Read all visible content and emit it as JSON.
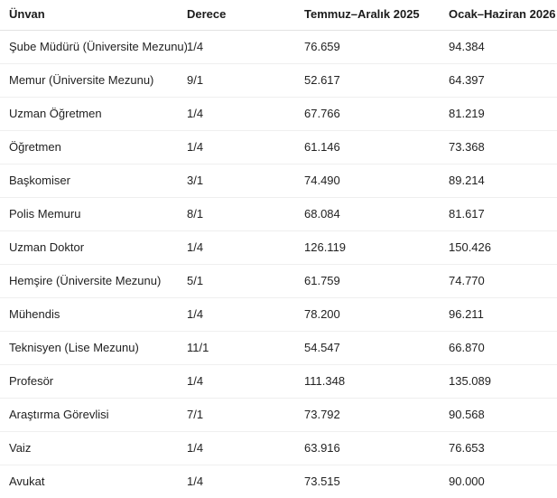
{
  "colors": {
    "background": "#ffffff",
    "text": "#212529",
    "header_border": "#e2e2e2",
    "row_border": "#efefef"
  },
  "table": {
    "columns": [
      "Ünvan",
      "Derece",
      "Temmuz–Aralık 2025",
      "Ocak–Haziran 2026"
    ],
    "rows": [
      [
        "Şube Müdürü (Üniversite Mezunu)",
        "1/4",
        "76.659",
        "94.384"
      ],
      [
        "Memur (Üniversite Mezunu)",
        "9/1",
        "52.617",
        "64.397"
      ],
      [
        "Uzman Öğretmen",
        "1/4",
        "67.766",
        "81.219"
      ],
      [
        "Öğretmen",
        "1/4",
        "61.146",
        "73.368"
      ],
      [
        "Başkomiser",
        "3/1",
        "74.490",
        "89.214"
      ],
      [
        "Polis Memuru",
        "8/1",
        "68.084",
        "81.617"
      ],
      [
        "Uzman Doktor",
        "1/4",
        "126.119",
        "150.426"
      ],
      [
        "Hemşire (Üniversite Mezunu)",
        "5/1",
        "61.759",
        "74.770"
      ],
      [
        "Mühendis",
        "1/4",
        "78.200",
        "96.211"
      ],
      [
        "Teknisyen (Lise Mezunu)",
        "11/1",
        "54.547",
        "66.870"
      ],
      [
        "Profesör",
        "1/4",
        "111.348",
        "135.089"
      ],
      [
        "Araştırma Görevlisi",
        "7/1",
        "73.792",
        "90.568"
      ],
      [
        "Vaiz",
        "1/4",
        "63.916",
        "76.653"
      ],
      [
        "Avukat",
        "1/4",
        "73.515",
        "90.000"
      ]
    ]
  },
  "chart_data": {
    "type": "table",
    "title": "",
    "columns": [
      "Ünvan",
      "Derece",
      "Temmuz–Aralık 2025",
      "Ocak–Haziran 2026"
    ],
    "rows": [
      [
        "Şube Müdürü (Üniversite Mezunu)",
        "1/4",
        "76.659",
        "94.384"
      ],
      [
        "Memur (Üniversite Mezunu)",
        "9/1",
        "52.617",
        "64.397"
      ],
      [
        "Uzman Öğretmen",
        "1/4",
        "67.766",
        "81.219"
      ],
      [
        "Öğretmen",
        "1/4",
        "61.146",
        "73.368"
      ],
      [
        "Başkomiser",
        "3/1",
        "74.490",
        "89.214"
      ],
      [
        "Polis Memuru",
        "8/1",
        "68.084",
        "81.617"
      ],
      [
        "Uzman Doktor",
        "1/4",
        "126.119",
        "150.426"
      ],
      [
        "Hemşire (Üniversite Mezunu)",
        "5/1",
        "61.759",
        "74.770"
      ],
      [
        "Mühendis",
        "1/4",
        "78.200",
        "96.211"
      ],
      [
        "Teknisyen (Lise Mezunu)",
        "11/1",
        "54.547",
        "66.870"
      ],
      [
        "Profesör",
        "1/4",
        "111.348",
        "135.089"
      ],
      [
        "Araştırma Görevlisi",
        "7/1",
        "73.792",
        "90.568"
      ],
      [
        "Vaiz",
        "1/4",
        "63.916",
        "76.653"
      ],
      [
        "Avukat",
        "1/4",
        "73.515",
        "90.000"
      ]
    ]
  }
}
